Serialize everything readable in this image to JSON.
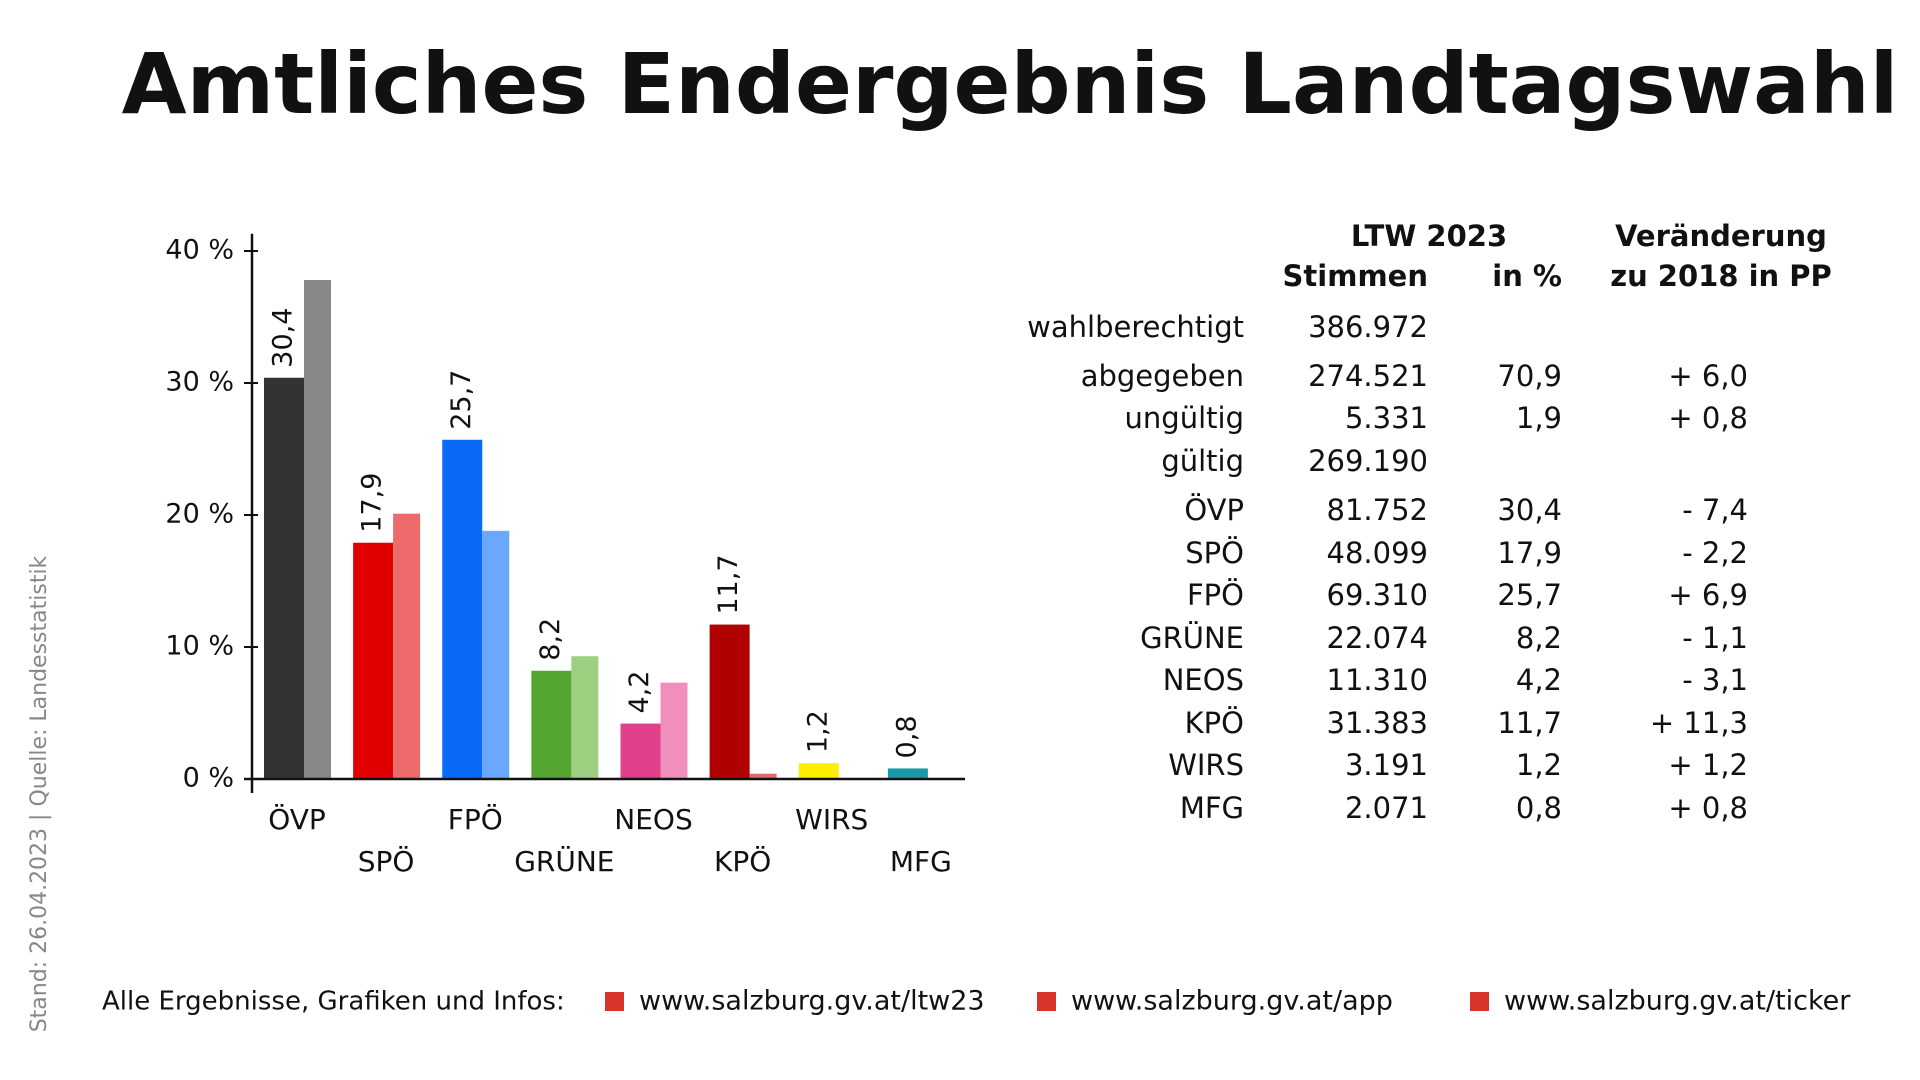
{
  "title": "Amtliches Endergebnis Landtagswahl",
  "side_note": "Stand: 26.04.2023 | Quelle: Landesstatistik",
  "chart_data": {
    "type": "bar",
    "categories": [
      "ÖVP",
      "SPÖ",
      "FPÖ",
      "GRÜNE",
      "NEOS",
      "KPÖ",
      "WIRS",
      "MFG"
    ],
    "series": [
      {
        "colors": [
          "#333333",
          "#e00000",
          "#0a6af8",
          "#55a630",
          "#e0418a",
          "#b00000",
          "#ffee00",
          "#1a9aa8"
        ],
        "values": [
          30.4,
          17.9,
          25.7,
          8.2,
          4.2,
          11.7,
          1.2,
          0.8
        ],
        "value_labels": [
          "30,4",
          "17,9",
          "25,7",
          "8,2",
          "4,2",
          "11,7",
          "1,2",
          "0,8"
        ]
      },
      {
        "colors": [
          "#888888",
          "#ec6a6a",
          "#6aa8ff",
          "#9ccf80",
          "#f08fbd",
          "#e06a6a",
          "#ffee00",
          "#1a9aa8"
        ],
        "values": [
          37.8,
          20.1,
          18.8,
          9.3,
          7.3,
          0.4,
          null,
          null
        ]
      }
    ],
    "ylim": [
      0,
      41
    ],
    "yticks": [
      {
        "value": 0,
        "label": "0 %"
      },
      {
        "value": 10,
        "label": "10 %"
      },
      {
        "value": 20,
        "label": "20 %"
      },
      {
        "value": 30,
        "label": "30 %"
      },
      {
        "value": 40,
        "label": "40 %"
      }
    ]
  },
  "table": {
    "headers": {
      "group": "LTW 2023",
      "votes": "Stimmen",
      "percent": "in %",
      "change_1": "Veränderung",
      "change_2": "zu 2018 in PP"
    },
    "rows": [
      [
        "wahlberechtigt",
        "386.972",
        null,
        null
      ],
      [
        "abgegeben",
        "274.521",
        "70,9",
        "+ 6,0"
      ],
      [
        "ungültig",
        "5.331",
        "1,9",
        "+ 0,8"
      ],
      [
        "gültig",
        "269.190",
        null,
        null
      ],
      [
        "ÖVP",
        "81.752",
        "30,4",
        "- 7,4"
      ],
      [
        "SPÖ",
        "48.099",
        "17,9",
        "- 2,2"
      ],
      [
        "FPÖ",
        "69.310",
        "25,7",
        "+ 6,9"
      ],
      [
        "GRÜNE",
        "22.074",
        "8,2",
        "- 1,1"
      ],
      [
        "NEOS",
        "11.310",
        "4,2",
        "- 3,1"
      ],
      [
        "KPÖ",
        "31.383",
        "11,7",
        "+ 11,3"
      ],
      [
        "WIRS",
        "3.191",
        "1,2",
        "+ 1,2"
      ],
      [
        "MFG",
        "2.071",
        "0,8",
        "+ 0,8"
      ]
    ]
  },
  "footer": {
    "label": "Alle Ergebnisse, Grafiken und Infos:",
    "links": [
      "www.salzburg.gv.at/ltw23",
      "www.salzburg.gv.at/app",
      "www.salzburg.gv.at/ticker"
    ]
  }
}
